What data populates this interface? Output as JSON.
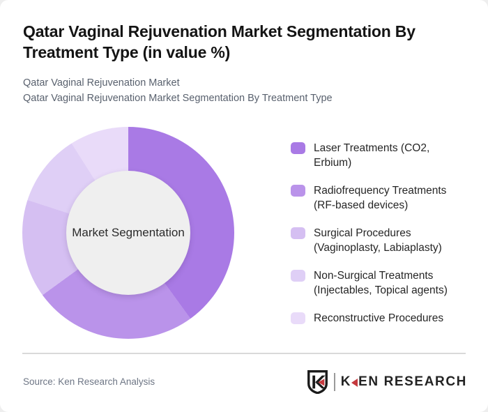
{
  "page": {
    "title_lines": [
      "Qatar Vaginal Rejuvenation Market Segmentation By",
      "Treatment Type (in value %)"
    ],
    "subtitle_lines": [
      "Qatar Vaginal Rejuvenation Market",
      "Qatar Vaginal Rejuvenation Market Segmentation By Treatment Type"
    ]
  },
  "chart_data": {
    "type": "pie",
    "variant": "donut",
    "title": "Qatar Vaginal Rejuvenation Market Segmentation By Treatment Type (in value %)",
    "unit": "value %",
    "center_label": "Market Segmentation",
    "legend_position": "right",
    "inner_circle_color": "#efefef",
    "segments": [
      {
        "label": "Laser Treatments (CO2, Erbium)",
        "label_lines": [
          "Laser Treatments (CO2,",
          "Erbium)"
        ],
        "value": 40,
        "color": "#a97ae5"
      },
      {
        "label": "Radiofrequency Treatments (RF-based devices)",
        "label_lines": [
          "Radiofrequency Treatments",
          "(RF-based devices)"
        ],
        "value": 25,
        "color": "#ba93ea"
      },
      {
        "label": "Surgical Procedures (Vaginoplasty, Labiaplasty)",
        "label_lines": [
          "Surgical Procedures",
          "(Vaginoplasty, Labiaplasty)"
        ],
        "value": 15,
        "color": "#d5bff2"
      },
      {
        "label": "Non-Surgical Treatments (Injectables, Topical agents)",
        "label_lines": [
          "Non-Surgical Treatments",
          "(Injectables, Topical agents)"
        ],
        "value": 11,
        "color": "#dfcff6"
      },
      {
        "label": "Reconstructive Procedures",
        "label_lines": [
          "Reconstructive Procedures"
        ],
        "value": 9,
        "color": "#e9dbf9"
      }
    ]
  },
  "footer": {
    "source": "Source: Ken Research Analysis",
    "logo": {
      "shield_letter": "K",
      "brand_first_letter": "K",
      "brand_rest": "EN RESEARCH",
      "accent_color": "#c5393e"
    }
  }
}
